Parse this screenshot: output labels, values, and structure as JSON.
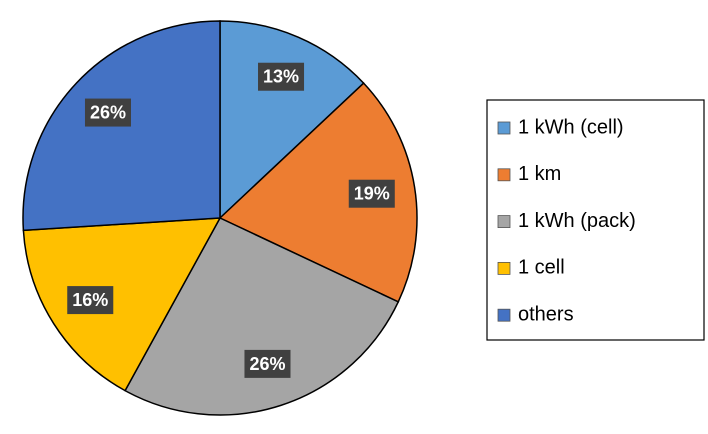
{
  "chart_data": {
    "type": "pie",
    "categories": [
      "1 kWh (cell)",
      "1 km",
      "1 kWh (pack)",
      "1 cell",
      "others"
    ],
    "values": [
      13,
      19,
      26,
      16,
      26
    ],
    "value_labels": [
      "13%",
      "19%",
      "26%",
      "16%",
      "26%"
    ],
    "colors": [
      "#5b9bd5",
      "#ed7d31",
      "#a5a5a5",
      "#ffc000",
      "#4472c4"
    ],
    "legend": "right"
  }
}
